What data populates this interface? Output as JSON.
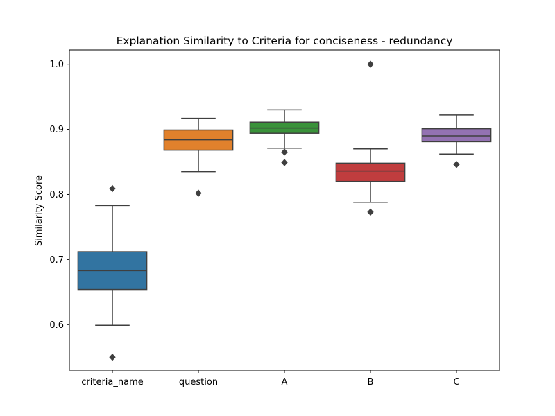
{
  "chart_data": {
    "type": "box",
    "title": "Explanation Similarity to Criteria for conciseness - redundancy",
    "xlabel": "",
    "ylabel": "Similarity Score",
    "ylim": [
      0.53,
      1.022
    ],
    "yticks": [
      0.6,
      0.7,
      0.8,
      0.9,
      1.0
    ],
    "ytick_labels": [
      "0.6",
      "0.7",
      "0.8",
      "0.9",
      "1.0"
    ],
    "categories": [
      "criteria_name",
      "question",
      "A",
      "B",
      "C"
    ],
    "boxes": [
      {
        "category": "criteria_name",
        "whisker_low": 0.599,
        "q1": 0.654,
        "median": 0.683,
        "q3": 0.712,
        "whisker_high": 0.783,
        "outliers": [
          0.55,
          0.809
        ],
        "color": "#3274a1"
      },
      {
        "category": "question",
        "whisker_low": 0.835,
        "q1": 0.868,
        "median": 0.884,
        "q3": 0.899,
        "whisker_high": 0.917,
        "outliers": [
          0.802
        ],
        "color": "#e1812c"
      },
      {
        "category": "A",
        "whisker_low": 0.871,
        "q1": 0.894,
        "median": 0.902,
        "q3": 0.911,
        "whisker_high": 0.93,
        "outliers": [
          0.849,
          0.865
        ],
        "color": "#3a923a"
      },
      {
        "category": "B",
        "whisker_low": 0.788,
        "q1": 0.82,
        "median": 0.836,
        "q3": 0.848,
        "whisker_high": 0.87,
        "outliers": [
          0.773,
          1.0
        ],
        "color": "#c03d3e"
      },
      {
        "category": "C",
        "whisker_low": 0.862,
        "q1": 0.881,
        "median": 0.89,
        "q3": 0.901,
        "whisker_high": 0.922,
        "outliers": [
          0.846
        ],
        "color": "#9372b2"
      }
    ],
    "grid": false,
    "legend": "none"
  }
}
